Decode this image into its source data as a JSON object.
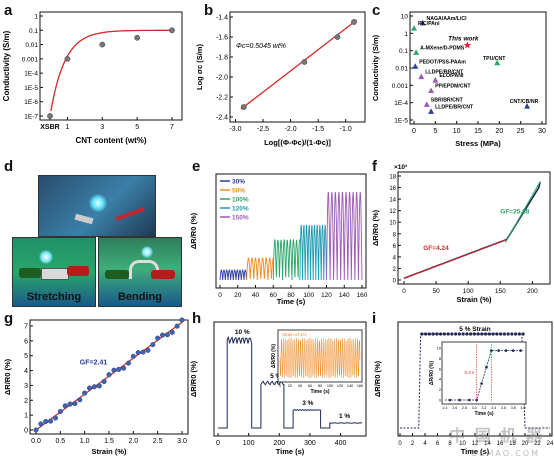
{
  "panel_labels": {
    "a": "a",
    "b": "b",
    "c": "c",
    "d": "d",
    "e": "e",
    "f": "f",
    "g": "g",
    "h": "h",
    "i": "i"
  },
  "colors": {
    "red": "#d62828",
    "blue": "#2c3e9e",
    "orange": "#f08a24",
    "green": "#2aa66a",
    "cyan": "#1f9bb5",
    "purple": "#9b59b6",
    "dark": "#1e2a55"
  },
  "watermark": {
    "cn": "中 国 机 器",
    "en": "OKMAO.COM"
  },
  "chart_data": [
    {
      "panel": "a",
      "type": "scatter",
      "xlabel": "CNT content (wt%)",
      "ylabel": "Conductivity (S/m)",
      "categories": [
        "XSBR",
        "1",
        "3",
        "5",
        "7"
      ],
      "x": [
        0,
        1,
        3,
        5,
        7
      ],
      "y": [
        1e-07,
        0.001,
        0.01,
        0.03,
        0.1
      ],
      "yticks": [
        "1E-7",
        "1E-6",
        "1E-5",
        "1E-4",
        "0.001",
        "0.01",
        "0.1",
        "1"
      ]
    },
    {
      "panel": "b",
      "type": "line",
      "xlabel": "Log[(Φ-Φc)/(1-Φc)]",
      "ylabel": "Log σc (S/m)",
      "annotation": "Φc=0.5045 wt%",
      "x": [
        -2.85,
        -1.75,
        -1.15,
        -0.85
      ],
      "y": [
        -2.3,
        -1.85,
        -1.6,
        -1.45
      ],
      "xticks": [
        "-3.0",
        "-2.5",
        "-2.0",
        "-1.5",
        "-1.0"
      ],
      "yticks": [
        "-2.4",
        "-2.2",
        "-2.0",
        "-1.8",
        "-1.6",
        "-1.4"
      ],
      "xlim": [
        -3.1,
        -0.65
      ],
      "ylim": [
        -2.45,
        -1.35
      ]
    },
    {
      "panel": "c",
      "type": "scatter",
      "xlabel": "Stress (MPa)",
      "ylabel": "Conductivity (S/m)",
      "xticks": [
        "0",
        "5",
        "10",
        "15",
        "20",
        "25",
        "30"
      ],
      "yticks": [
        "1E-5",
        "1E-4",
        "0.001",
        "0.01",
        "0.1",
        "1",
        "10"
      ],
      "points": [
        {
          "label": "NAGA/AAm/LiCl",
          "x": 2,
          "logy": 0.6,
          "color": "#2c3e9e"
        },
        {
          "label": "PIC/PAni",
          "x": 0,
          "logy": 0.3,
          "color": "#2aa66a"
        },
        {
          "label": "This work",
          "x": 12.5,
          "logy": -0.7,
          "color": "#d62828"
        },
        {
          "label": "A-MXene/D-PDMS",
          "x": 0.5,
          "logy": -1.1,
          "color": "#2aa66a"
        },
        {
          "label": "TPU/CNT",
          "x": 19.5,
          "logy": -1.7,
          "color": "#2aa66a"
        },
        {
          "label": "PEDOT/PSS-PAAm",
          "x": 0.3,
          "logy": -1.9,
          "color": "#2c3e9e"
        },
        {
          "label": "LLDPE/BR/CNT",
          "x": 1.7,
          "logy": -2.5,
          "color": "#9b59b6"
        },
        {
          "label": "ELO/PANI",
          "x": 5,
          "logy": -2.7,
          "color": "#9b59b6"
        },
        {
          "label": "PP/EPDM/CNT",
          "x": 4,
          "logy": -3.3,
          "color": "#9b59b6"
        },
        {
          "label": "SBR/BR/CNT",
          "x": 3,
          "logy": -4.1,
          "color": "#9b59b6"
        },
        {
          "label": "LLDPE/BR/CNT",
          "x": 4,
          "logy": -4.5,
          "color": "#2c3e9e"
        },
        {
          "label": "CNT/CB/NR",
          "x": 26.5,
          "logy": -4.2,
          "color": "#2c3e9e"
        }
      ]
    },
    {
      "panel": "e",
      "type": "line",
      "xlabel": "Time (s)",
      "ylabel": "ΔR/R0 (%)",
      "xticks": [
        "0",
        "20",
        "40",
        "60",
        "80",
        "100",
        "120",
        "140",
        "160"
      ],
      "series": [
        {
          "name": "30%",
          "color": "#2c3e9e"
        },
        {
          "name": "50%",
          "color": "#f08a24"
        },
        {
          "name": "100%",
          "color": "#2aa66a"
        },
        {
          "name": "120%",
          "color": "#1f9bb5"
        },
        {
          "name": "150%",
          "color": "#9b59b6"
        }
      ]
    },
    {
      "panel": "f",
      "type": "line",
      "xlabel": "Strain (%)",
      "ylabel": "ΔR/R0 (%)",
      "exponent": "×10³",
      "xticks": [
        "0",
        "50",
        "100",
        "150",
        "200"
      ],
      "yticks": [
        "0",
        "2",
        "4",
        "6",
        "8",
        "10",
        "12",
        "14",
        "16",
        "18"
      ],
      "annotations": [
        "GF=4.24",
        "GF=25.88"
      ]
    },
    {
      "panel": "g",
      "type": "scatter",
      "xlabel": "Strain (%)",
      "ylabel": "ΔR/R0 (%)",
      "xticks": [
        "0.0",
        "0.5",
        "1.0",
        "1.5",
        "2.0",
        "2.5",
        "3.0"
      ],
      "yticks": [
        "0",
        "1",
        "2",
        "3",
        "4",
        "5",
        "6",
        "7"
      ],
      "annotation": "GF=2.41"
    },
    {
      "panel": "h",
      "type": "line",
      "xlabel": "Time (s)",
      "ylabel": "ΔR/R0 (%)",
      "xticks": [
        "0",
        "100",
        "200",
        "300",
        "400"
      ],
      "annotations": [
        "10 %",
        "5 %",
        "3 %",
        "1 %"
      ],
      "inset": {
        "xlabel": "Time (s)",
        "ylabel": "ΔR/R0 (%)",
        "title": "Strain of 1%",
        "xticks": [
          "0",
          "20",
          "40",
          "60",
          "80",
          "100",
          "120",
          "140",
          "160"
        ]
      }
    },
    {
      "panel": "i",
      "type": "line",
      "xlabel": "Time (s)",
      "ylabel": "ΔR/R0 (%)",
      "xticks": [
        "0",
        "2",
        "4",
        "6",
        "8",
        "10",
        "12",
        "14",
        "16",
        "18",
        "20",
        "22",
        "24"
      ],
      "annotation": "5 % Strain",
      "inset": {
        "xlabel": "Time (s)",
        "ylabel": "ΔR/R0 (%)",
        "annotation": "0.3 s",
        "xticks": [
          "2.4",
          "2.6",
          "2.8",
          "3.0",
          "3.2",
          "3.4",
          "3.6",
          "3.8",
          "4.0"
        ],
        "yticks": [
          "0",
          "2",
          "4",
          "6",
          "8",
          "10"
        ]
      }
    }
  ],
  "photos": {
    "stretching": "Stretching",
    "bending": "Bending"
  }
}
